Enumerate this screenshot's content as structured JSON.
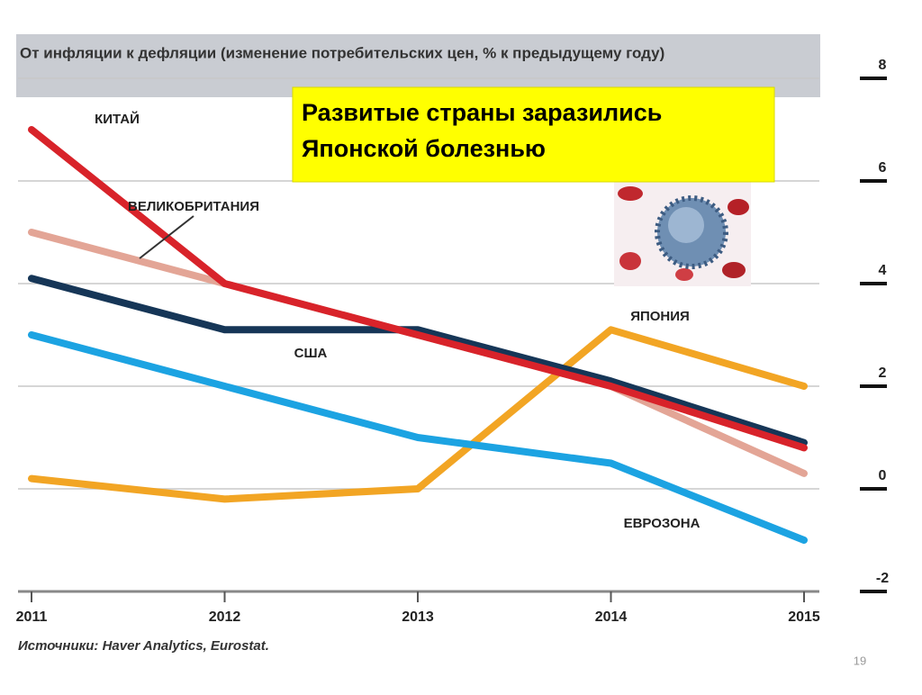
{
  "chart_data": {
    "type": "line",
    "title": "От инфляции к дефляции (изменение потребительских цен, % к предыдущему году)",
    "callout": "Развитые страны заразились Японской болезнью",
    "source": "Источники: Haver Analytics, Eurostat.",
    "page_number": "19",
    "x": [
      2011,
      2012,
      2013,
      2014,
      2015
    ],
    "xlim": [
      2011,
      2015
    ],
    "xticks": [
      2011,
      2012,
      2013,
      2014,
      2015
    ],
    "ylim": [
      -2,
      8
    ],
    "yticks": [
      -2,
      0,
      2,
      4,
      6,
      8
    ],
    "grid": true,
    "series": [
      {
        "name": "КИТАЙ",
        "color": "#d8232a",
        "values": [
          7.0,
          4.0,
          3.0,
          2.0,
          0.8
        ]
      },
      {
        "name": "ВЕЛИКОБРИТАНИЯ",
        "color": "#e3a596",
        "values": [
          5.0,
          4.0,
          3.0,
          2.0,
          0.3
        ]
      },
      {
        "name": "США",
        "color": "#163657",
        "values": [
          4.1,
          3.1,
          3.1,
          2.1,
          0.9
        ]
      },
      {
        "name": "ЯПОНИЯ",
        "color": "#f2a524",
        "values": [
          0.2,
          -0.2,
          0.0,
          3.1,
          2.0
        ]
      },
      {
        "name": "ЕВРОЗОНА",
        "color": "#1ca3e2",
        "values": [
          3.0,
          2.0,
          1.0,
          0.5,
          -1.0
        ]
      }
    ]
  }
}
